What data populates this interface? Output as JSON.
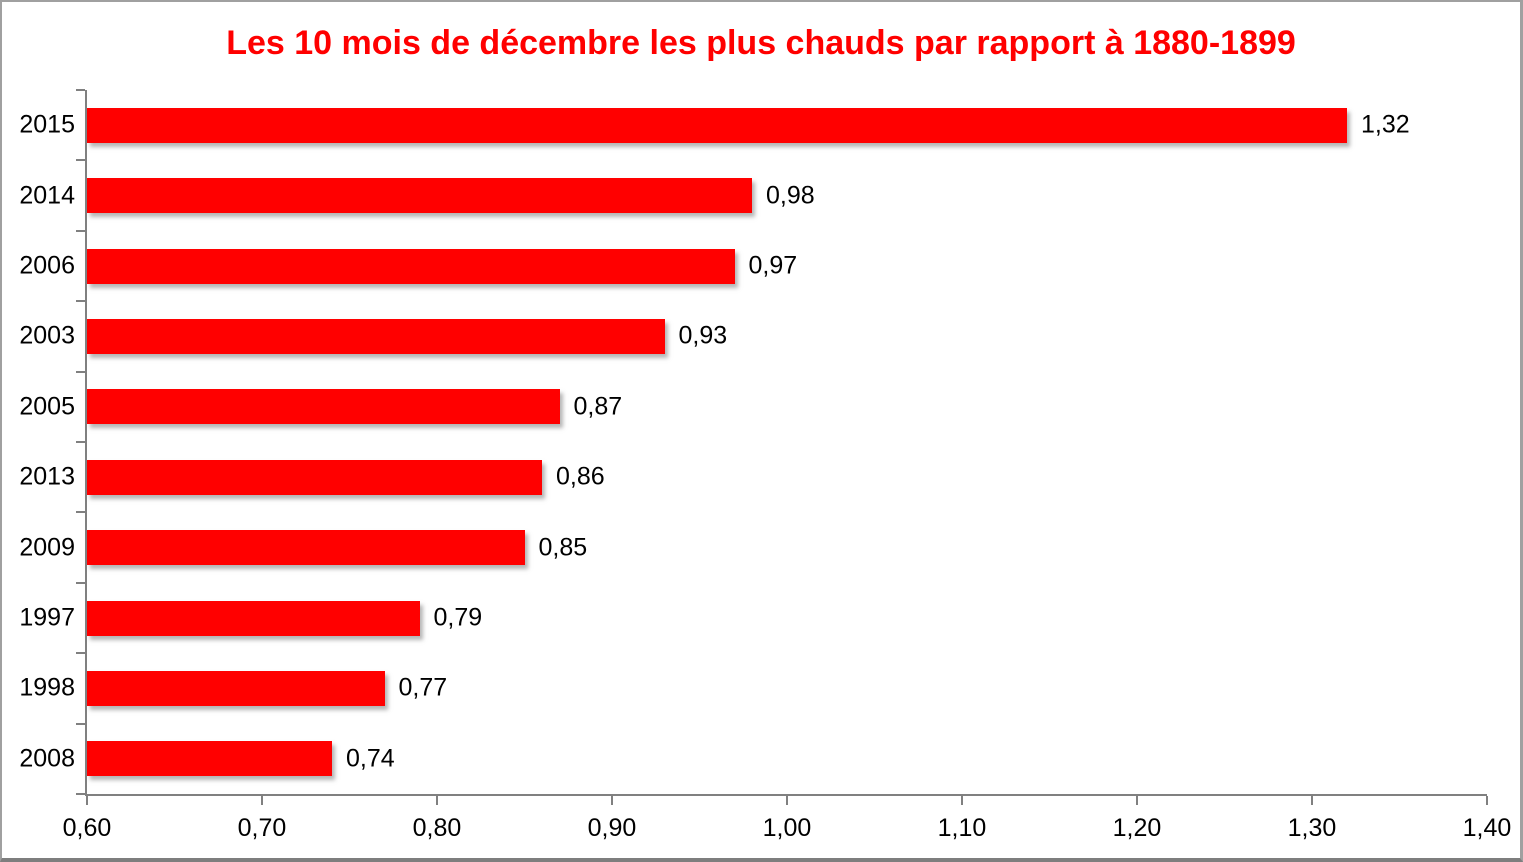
{
  "title": "Les 10 mois de décembre les plus chauds par rapport à 1880-1899",
  "colors": {
    "bar": "#ff0000",
    "title": "#ff0000",
    "axis": "#808080",
    "label": "#000000",
    "frame": "#a0a0a0"
  },
  "chart_data": {
    "type": "bar",
    "orientation": "horizontal",
    "title": "Les 10 mois de décembre les plus chauds par rapport à 1880-1899",
    "categories": [
      "2015",
      "2014",
      "2006",
      "2003",
      "2005",
      "2013",
      "2009",
      "1997",
      "1998",
      "2008"
    ],
    "values": [
      1.32,
      0.98,
      0.97,
      0.93,
      0.87,
      0.86,
      0.85,
      0.79,
      0.77,
      0.74
    ],
    "value_labels": [
      "1,32",
      "0,98",
      "0,97",
      "0,93",
      "0,87",
      "0,86",
      "0,85",
      "0,79",
      "0,77",
      "0,74"
    ],
    "xlabel": "",
    "ylabel": "",
    "xlim": [
      0.6,
      1.4
    ],
    "x_tick_values": [
      0.6,
      0.7,
      0.8,
      0.9,
      1.0,
      1.1,
      1.2,
      1.3,
      1.4
    ],
    "x_tick_labels": [
      "0,60",
      "0,70",
      "0,80",
      "0,90",
      "1,00",
      "1,10",
      "1,20",
      "1,30",
      "1,40"
    ],
    "grid": false,
    "legend": false,
    "data_labels": true
  }
}
